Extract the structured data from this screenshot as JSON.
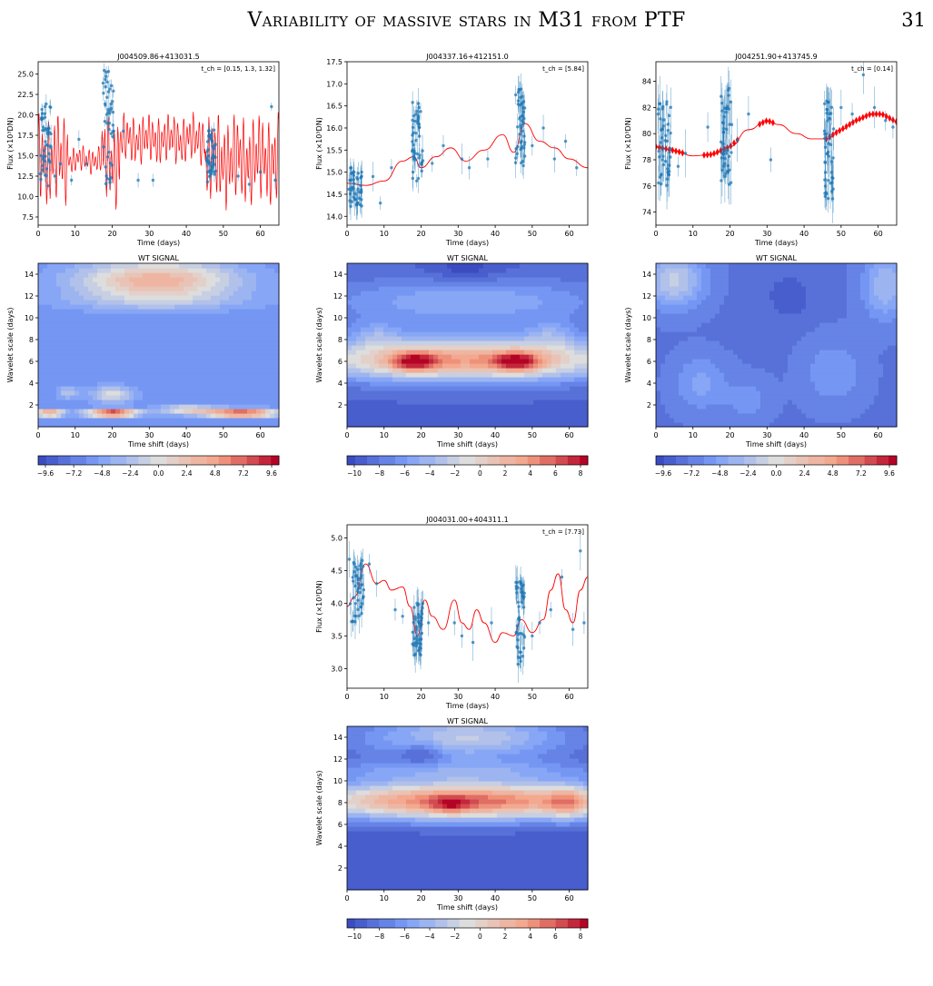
{
  "running_head": {
    "title": "Variability of massive stars in M31 from PTF",
    "page_number": "31"
  },
  "axis_text": {
    "lc_xlabel": "Time (days)",
    "lc_ylabel": "Flux (×10³DN)",
    "wt_title": "WT SIGNAL",
    "wt_xlabel": "Time shift (days)",
    "wt_ylabel": "Wavelet scale (days)"
  },
  "colors": {
    "data_points": "#1f77b4",
    "model_curve": "#ff0000",
    "colormap": "coolwarm"
  },
  "chart_data": [
    {
      "id": "lc1",
      "type": "scatter",
      "title": "J004509.86+413031.5",
      "annotation": "t_ch = [0.15, 1.3, 1.32]",
      "xlim": [
        0,
        65
      ],
      "ylim": [
        6.5,
        26.5
      ],
      "xticks": [
        0,
        10,
        20,
        30,
        40,
        50,
        60
      ],
      "yticks": [
        7.5,
        10.0,
        12.5,
        15.0,
        17.5,
        20.0,
        22.5,
        25.0
      ],
      "ytick_labels": [
        "7.5",
        "10.0",
        "12.5",
        "15.0",
        "17.5",
        "20.0",
        "22.5",
        "25.0"
      ],
      "clusters": [
        {
          "x0": 0.5,
          "x1": 3.5,
          "ymin": 11.0,
          "ymax": 21.5
        },
        {
          "x0": 17.5,
          "x1": 20.5,
          "ymin": 11.5,
          "ymax": 25.5
        },
        {
          "x0": 45.5,
          "x1": 48.0,
          "ymin": 11.5,
          "ymax": 18.5
        }
      ],
      "scattered": [
        [
          4.5,
          12.5
        ],
        [
          6,
          14
        ],
        [
          9,
          12
        ],
        [
          11,
          17
        ],
        [
          13,
          14
        ],
        [
          23,
          18
        ],
        [
          27,
          12
        ],
        [
          31,
          12
        ],
        [
          54,
          12.5
        ],
        [
          57,
          11.5
        ],
        [
          60,
          13
        ],
        [
          63,
          21
        ],
        [
          64,
          12
        ]
      ],
      "errbar": 0.8,
      "model": {
        "base": 14.5,
        "components": [
          [
            3.5,
            0.85,
            0.0
          ],
          [
            2.0,
            1.35,
            1.1
          ],
          [
            0.8,
            6.0,
            2.0
          ]
        ],
        "gaps": [
          [
            8,
            17,
            0.3
          ],
          [
            22,
            45,
            0.55
          ]
        ]
      }
    },
    {
      "id": "lc2",
      "type": "scatter",
      "title": "J004337.16+412151.0",
      "annotation": "t_ch = [5.84]",
      "xlim": [
        0,
        65
      ],
      "ylim": [
        13.8,
        17.5
      ],
      "xticks": [
        0,
        10,
        20,
        30,
        40,
        50,
        60
      ],
      "yticks": [
        14.0,
        14.5,
        15.0,
        15.5,
        16.0,
        16.5,
        17.0,
        17.5
      ],
      "ytick_labels": [
        "14.0",
        "14.5",
        "15.0",
        "15.5",
        "16.0",
        "16.5",
        "17.0",
        "17.5"
      ],
      "clusters": [
        {
          "x0": 0.5,
          "x1": 4.0,
          "ymin": 14.2,
          "ymax": 15.1
        },
        {
          "x0": 17.5,
          "x1": 20.5,
          "ymin": 14.8,
          "ymax": 16.6
        },
        {
          "x0": 45.5,
          "x1": 48.0,
          "ymin": 15.1,
          "ymax": 17.0
        }
      ],
      "scattered": [
        [
          7,
          14.9
        ],
        [
          9,
          14.3
        ],
        [
          12,
          15.1
        ],
        [
          23,
          15.2
        ],
        [
          26,
          15.6
        ],
        [
          31,
          15.3
        ],
        [
          33,
          15.1
        ],
        [
          38,
          15.3
        ],
        [
          50,
          15.6
        ],
        [
          53,
          16.0
        ],
        [
          56,
          15.3
        ],
        [
          59,
          15.7
        ],
        [
          62,
          15.1
        ]
      ],
      "errbar": 0.25,
      "model": {
        "points": [
          [
            0,
            14.75
          ],
          [
            5,
            14.7
          ],
          [
            10,
            14.8
          ],
          [
            15,
            15.25
          ],
          [
            18,
            15.35
          ],
          [
            20,
            15.1
          ],
          [
            24,
            15.35
          ],
          [
            28,
            15.55
          ],
          [
            32,
            15.25
          ],
          [
            37,
            15.5
          ],
          [
            42,
            15.85
          ],
          [
            45,
            15.45
          ],
          [
            48,
            16.1
          ],
          [
            52,
            15.7
          ],
          [
            56,
            15.55
          ],
          [
            60,
            15.3
          ],
          [
            65,
            15.1
          ]
        ]
      }
    },
    {
      "id": "lc3",
      "type": "scatter",
      "title": "J004251.90+413745.9",
      "annotation": "t_ch = [0.14]",
      "xlim": [
        0,
        65
      ],
      "ylim": [
        73,
        85.5
      ],
      "xticks": [
        0,
        10,
        20,
        30,
        40,
        50,
        60
      ],
      "yticks": [
        74,
        76,
        78,
        80,
        82,
        84
      ],
      "ytick_labels": [
        "74",
        "76",
        "78",
        "80",
        "82",
        "84"
      ],
      "clusters": [
        {
          "x0": 0.5,
          "x1": 4.0,
          "ymin": 76.0,
          "ymax": 82.5
        },
        {
          "x0": 17.5,
          "x1": 20.5,
          "ymin": 76.0,
          "ymax": 83.5
        },
        {
          "x0": 45.5,
          "x1": 48.0,
          "ymin": 75.0,
          "ymax": 82.5
        }
      ],
      "scattered": [
        [
          6,
          77.5
        ],
        [
          8,
          78.5
        ],
        [
          14,
          80.5
        ],
        [
          22,
          79.5
        ],
        [
          25,
          81.5
        ],
        [
          31,
          78
        ],
        [
          50,
          82
        ],
        [
          53,
          81.5
        ],
        [
          56,
          84.5
        ],
        [
          59,
          82
        ],
        [
          62,
          81
        ],
        [
          64,
          80.5
        ]
      ],
      "errbar": 1.4,
      "model": {
        "points": [
          [
            0,
            79.0
          ],
          [
            5,
            78.7
          ],
          [
            10,
            78.3
          ],
          [
            15,
            78.4
          ],
          [
            20,
            79.0
          ],
          [
            25,
            80.3
          ],
          [
            30,
            81.0
          ],
          [
            33,
            80.7
          ],
          [
            38,
            80.0
          ],
          [
            42,
            79.6
          ],
          [
            46,
            79.6
          ],
          [
            50,
            80.3
          ],
          [
            54,
            81.0
          ],
          [
            58,
            81.5
          ],
          [
            61,
            81.5
          ],
          [
            65,
            80.9
          ]
        ]
      },
      "band_ranges": [
        [
          0,
          8
        ],
        [
          13,
          22
        ],
        [
          28,
          32
        ],
        [
          46,
          65
        ]
      ]
    },
    {
      "id": "lc4",
      "type": "scatter",
      "title": "J004031.00+404311.1",
      "annotation": "t_ch = [7.73]",
      "xlim": [
        0,
        65
      ],
      "ylim": [
        2.7,
        5.2
      ],
      "xticks": [
        0,
        10,
        20,
        30,
        40,
        50,
        60
      ],
      "yticks": [
        3.0,
        3.5,
        4.0,
        4.5,
        5.0
      ],
      "ytick_labels": [
        "3.0",
        "3.5",
        "4.0",
        "4.5",
        "5.0"
      ],
      "clusters": [
        {
          "x0": 0.5,
          "x1": 4.5,
          "ymin": 3.7,
          "ymax": 4.7
        },
        {
          "x0": 17.5,
          "x1": 20.5,
          "ymin": 3.2,
          "ymax": 4.0
        },
        {
          "x0": 45.5,
          "x1": 48.0,
          "ymin": 3.0,
          "ymax": 4.4
        }
      ],
      "scattered": [
        [
          6,
          4.6
        ],
        [
          8,
          4.3
        ],
        [
          13,
          3.9
        ],
        [
          15,
          3.8
        ],
        [
          22,
          3.7
        ],
        [
          29,
          3.7
        ],
        [
          31,
          3.5
        ],
        [
          34,
          3.4
        ],
        [
          39,
          3.7
        ],
        [
          50,
          3.5
        ],
        [
          52,
          3.7
        ],
        [
          55,
          3.9
        ],
        [
          58,
          4.4
        ],
        [
          61,
          3.6
        ],
        [
          63,
          4.8
        ],
        [
          64,
          3.7
        ]
      ],
      "errbar": 0.2,
      "model": {
        "points": [
          [
            0,
            3.95
          ],
          [
            2,
            4.1
          ],
          [
            5,
            4.6
          ],
          [
            8,
            4.3
          ],
          [
            10,
            4.35
          ],
          [
            12,
            4.2
          ],
          [
            15,
            4.25
          ],
          [
            17,
            3.95
          ],
          [
            19,
            3.5
          ],
          [
            21,
            4.05
          ],
          [
            23,
            3.8
          ],
          [
            26,
            3.6
          ],
          [
            29,
            4.05
          ],
          [
            31,
            3.7
          ],
          [
            33,
            3.6
          ],
          [
            35,
            3.9
          ],
          [
            37,
            3.7
          ],
          [
            40,
            3.4
          ],
          [
            42,
            3.55
          ],
          [
            45,
            3.5
          ],
          [
            47,
            3.75
          ],
          [
            50,
            3.55
          ],
          [
            53,
            3.75
          ],
          [
            55,
            4.2
          ],
          [
            57,
            4.45
          ],
          [
            59,
            3.9
          ],
          [
            61,
            3.7
          ],
          [
            63,
            4.2
          ],
          [
            65,
            4.4
          ]
        ]
      }
    },
    {
      "id": "wt1",
      "type": "heatmap",
      "title": "WT SIGNAL",
      "xlim": [
        0,
        65
      ],
      "ylim": [
        0,
        15
      ],
      "xticks": [
        0,
        10,
        20,
        30,
        40,
        50,
        60
      ],
      "yticks": [
        2,
        4,
        6,
        8,
        10,
        12,
        14
      ],
      "cbar_ticks": [
        "−9.6",
        "−7.2",
        "−4.8",
        "−2.4",
        "0.0",
        "2.4",
        "4.8",
        "7.2",
        "9.6"
      ],
      "vmin": -10.8,
      "vmax": 10.8,
      "base": -6.5,
      "blobs": [
        [
          32,
          13.5,
          22,
          1.8,
          10.5
        ],
        [
          32,
          11.5,
          30,
          1.0,
          2.5
        ],
        [
          20,
          1.3,
          7,
          0.35,
          17.5
        ],
        [
          55,
          1.3,
          10,
          0.4,
          15.5
        ],
        [
          3,
          1.3,
          4,
          0.35,
          13
        ],
        [
          40,
          1.6,
          8,
          0.45,
          7
        ],
        [
          20,
          3.0,
          6,
          0.8,
          6.5
        ],
        [
          8,
          3.2,
          3,
          0.6,
          4.5
        ]
      ]
    },
    {
      "id": "wt2",
      "type": "heatmap",
      "title": "WT SIGNAL",
      "xlim": [
        0,
        65
      ],
      "ylim": [
        0,
        15
      ],
      "xticks": [
        0,
        10,
        20,
        30,
        40,
        50,
        60
      ],
      "yticks": [
        2,
        4,
        6,
        8,
        10,
        12,
        14
      ],
      "cbar_ticks": [
        "−10",
        "−8",
        "−6",
        "−4",
        "−2",
        "0",
        "2",
        "4",
        "6",
        "8"
      ],
      "vmin": -11.5,
      "vmax": 8.5,
      "base": -10,
      "blobs": [
        [
          32,
          6.2,
          45,
          1.9,
          13.5
        ],
        [
          18,
          6.0,
          6,
          0.9,
          8
        ],
        [
          46,
          6.0,
          6,
          0.9,
          8
        ],
        [
          32,
          11.5,
          40,
          2.2,
          4.5
        ],
        [
          8,
          8.5,
          7,
          1.3,
          3
        ],
        [
          55,
          8.5,
          7,
          1.3,
          3
        ],
        [
          32,
          14.5,
          10,
          1.2,
          -2
        ]
      ]
    },
    {
      "id": "wt3",
      "type": "heatmap",
      "title": "WT SIGNAL",
      "xlim": [
        0,
        65
      ],
      "ylim": [
        0,
        15
      ],
      "xticks": [
        0,
        10,
        20,
        30,
        40,
        50,
        60
      ],
      "yticks": [
        2,
        4,
        6,
        8,
        10,
        12,
        14
      ],
      "cbar_ticks": [
        "−9.6",
        "−7.2",
        "−4.8",
        "−2.4",
        "0.0",
        "2.4",
        "4.8",
        "7.2",
        "9.6"
      ],
      "vmin": -10.8,
      "vmax": 10.8,
      "base": -8,
      "blobs": [
        [
          5,
          13.5,
          8,
          2.5,
          6.5
        ],
        [
          62,
          13.0,
          6,
          3.0,
          5
        ],
        [
          12,
          4.0,
          7,
          2.5,
          3
        ],
        [
          48,
          5.0,
          8,
          3.0,
          2.5
        ],
        [
          25,
          2.5,
          6,
          2.0,
          2
        ],
        [
          36,
          12,
          6,
          2,
          -2
        ]
      ]
    },
    {
      "id": "wt4",
      "type": "heatmap",
      "title": "WT SIGNAL",
      "xlim": [
        0,
        65
      ],
      "ylim": [
        0,
        15
      ],
      "xticks": [
        0,
        10,
        20,
        30,
        40,
        50,
        60
      ],
      "yticks": [
        2,
        4,
        6,
        8,
        10,
        12,
        14
      ],
      "cbar_ticks": [
        "−10",
        "−8",
        "−6",
        "−4",
        "−2",
        "0",
        "2",
        "4",
        "6",
        "8"
      ],
      "vmin": -11,
      "vmax": 9,
      "base": -10,
      "blobs": [
        [
          32,
          8.2,
          45,
          1.7,
          16
        ],
        [
          60,
          8.0,
          6,
          1.4,
          5
        ],
        [
          28,
          7.8,
          5,
          0.8,
          4
        ],
        [
          32,
          14.0,
          28,
          2.0,
          7.5
        ],
        [
          20,
          12.5,
          6,
          1.3,
          -3
        ],
        [
          30,
          11,
          40,
          1.0,
          4
        ]
      ]
    }
  ]
}
